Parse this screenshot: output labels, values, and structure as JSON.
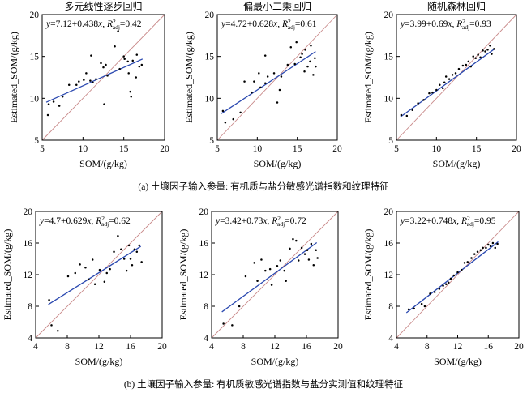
{
  "colors": {
    "fit_line": "#2b49b0",
    "ref_line": "#c98a8a",
    "point": "#000000",
    "frame": "#000000"
  },
  "captions": {
    "a": "(a) 土壤因子输入参量: 有机质与盐分敏感光谱指数和纹理特征",
    "b": "(b) 土壤因子输入参量: 有机质敏感光谱指数与盐分实测值和纹理特征"
  },
  "chart_data": [
    {
      "type": "scatter",
      "panel": "a",
      "title": "多元线性逐步回归",
      "xlabel": "SOM/(g/kg)",
      "ylabel": "Estimated_SOM/(g/kg)",
      "xlim": [
        5,
        20
      ],
      "ylim": [
        5,
        20
      ],
      "xticks": [
        "5",
        "10",
        "15",
        "20"
      ],
      "yticks": [
        "5",
        "10",
        "15",
        "20"
      ],
      "equation": {
        "lhs": "y",
        "intercept": "7.12",
        "slope": "0.438",
        "var": "x",
        "r2sym": "R",
        "r2sup": "2",
        "r2sub": "adj",
        "r2": "0.42"
      },
      "fit": {
        "intercept": 7.12,
        "slope": 0.438,
        "x_range": [
          5.5,
          17.3
        ]
      },
      "points": [
        [
          5.7,
          8.0
        ],
        [
          5.8,
          9.3
        ],
        [
          6.4,
          9.6
        ],
        [
          7.1,
          9.1
        ],
        [
          7.5,
          10.2
        ],
        [
          8.3,
          11.6
        ],
        [
          9.2,
          11.6
        ],
        [
          9.5,
          12.0
        ],
        [
          10.1,
          12.2
        ],
        [
          10.4,
          13.0
        ],
        [
          10.9,
          12.1
        ],
        [
          11.0,
          15.1
        ],
        [
          11.2,
          11.9
        ],
        [
          11.6,
          12.3
        ],
        [
          12.2,
          14.2
        ],
        [
          12.5,
          13.7
        ],
        [
          12.6,
          9.3
        ],
        [
          12.8,
          14.0
        ],
        [
          13.0,
          12.7
        ],
        [
          13.9,
          16.2
        ],
        [
          14.3,
          18.0
        ],
        [
          14.5,
          13.5
        ],
        [
          15.0,
          15.0
        ],
        [
          15.1,
          14.7
        ],
        [
          15.5,
          14.4
        ],
        [
          15.6,
          13.0
        ],
        [
          15.8,
          10.8
        ],
        [
          15.9,
          10.2
        ],
        [
          16.1,
          14.5
        ],
        [
          16.5,
          12.5
        ],
        [
          16.6,
          15.2
        ],
        [
          16.9,
          13.8
        ],
        [
          17.2,
          14.0
        ]
      ]
    },
    {
      "type": "scatter",
      "panel": "a",
      "title": "偏最小二乘回归",
      "xlabel": "SOM/(g/kg)",
      "ylabel": "Estimated_SOM/(g/kg)",
      "xlim": [
        5,
        20
      ],
      "ylim": [
        5,
        20
      ],
      "xticks": [
        "5",
        "10",
        "15",
        "20"
      ],
      "yticks": [
        "5",
        "10",
        "15",
        "20"
      ],
      "equation": {
        "lhs": "y",
        "intercept": "4.72",
        "slope": "0.628",
        "var": "x",
        "r2sym": "R",
        "r2sup": "2",
        "r2sub": "adj",
        "r2": "0.61"
      },
      "fit": {
        "intercept": 4.72,
        "slope": 0.628,
        "x_range": [
          5.5,
          17.3
        ]
      },
      "points": [
        [
          5.7,
          8.5
        ],
        [
          6.0,
          7.1
        ],
        [
          7.0,
          7.5
        ],
        [
          7.9,
          8.3
        ],
        [
          8.4,
          12.0
        ],
        [
          9.3,
          10.7
        ],
        [
          9.6,
          12.0
        ],
        [
          10.2,
          13.0
        ],
        [
          10.4,
          11.3
        ],
        [
          11.0,
          11.8
        ],
        [
          11.0,
          15.1
        ],
        [
          11.3,
          12.6
        ],
        [
          12.1,
          13.0
        ],
        [
          12.5,
          9.5
        ],
        [
          12.8,
          11.0
        ],
        [
          13.0,
          12.6
        ],
        [
          13.8,
          14.0
        ],
        [
          14.2,
          16.1
        ],
        [
          14.7,
          14.1
        ],
        [
          14.9,
          16.7
        ],
        [
          15.4,
          14.9
        ],
        [
          15.6,
          15.3
        ],
        [
          15.9,
          13.2
        ],
        [
          16.0,
          15.8
        ],
        [
          16.3,
          13.8
        ],
        [
          16.6,
          14.4
        ],
        [
          16.7,
          16.3
        ],
        [
          17.0,
          12.8
        ],
        [
          17.2,
          14.8
        ],
        [
          17.3,
          13.8
        ]
      ]
    },
    {
      "type": "scatter",
      "panel": "a",
      "title": "随机森林回归",
      "xlabel": "SOM/(g/kg)",
      "ylabel": "Estimated_SOM/(g/kg)",
      "xlim": [
        5,
        20
      ],
      "ylim": [
        5,
        20
      ],
      "xticks": [
        "5",
        "10",
        "15",
        "20"
      ],
      "yticks": [
        "5",
        "10",
        "15",
        "20"
      ],
      "equation": {
        "lhs": "y",
        "intercept": "3.99",
        "slope": "0.69",
        "var": "x",
        "r2sym": "R",
        "r2sup": "2",
        "r2sub": "adj",
        "r2": "0.93"
      },
      "fit": {
        "intercept": 3.99,
        "slope": 0.69,
        "x_range": [
          5.5,
          17.3
        ]
      },
      "points": [
        [
          5.6,
          8.0
        ],
        [
          6.3,
          7.9
        ],
        [
          7.0,
          8.6
        ],
        [
          7.7,
          9.4
        ],
        [
          8.4,
          9.8
        ],
        [
          9.1,
          10.6
        ],
        [
          9.5,
          10.7
        ],
        [
          10.0,
          11.0
        ],
        [
          10.4,
          11.6
        ],
        [
          10.8,
          11.2
        ],
        [
          11.0,
          11.9
        ],
        [
          11.2,
          12.6
        ],
        [
          11.6,
          12.3
        ],
        [
          12.0,
          12.8
        ],
        [
          12.4,
          13.0
        ],
        [
          12.8,
          13.5
        ],
        [
          13.3,
          13.9
        ],
        [
          13.7,
          14.0
        ],
        [
          14.0,
          14.4
        ],
        [
          14.3,
          13.8
        ],
        [
          14.6,
          15.0
        ],
        [
          14.9,
          14.8
        ],
        [
          15.2,
          15.2
        ],
        [
          15.5,
          14.9
        ],
        [
          15.8,
          15.7
        ],
        [
          16.1,
          15.6
        ],
        [
          16.4,
          15.8
        ],
        [
          16.7,
          16.3
        ],
        [
          16.9,
          15.3
        ],
        [
          17.2,
          15.9
        ]
      ]
    },
    {
      "type": "scatter",
      "panel": "b",
      "title": "",
      "xlabel": "SOM/(g/kg)",
      "ylabel": "Estimated_SOM/(g/kg)",
      "xlim": [
        4,
        20
      ],
      "ylim": [
        4,
        20
      ],
      "xticks": [
        "4",
        "8",
        "12",
        "16",
        "20"
      ],
      "yticks": [
        "4",
        "8",
        "12",
        "16",
        "20"
      ],
      "equation": {
        "lhs": "y",
        "intercept": "4.7",
        "slope": "0.629",
        "var": "x",
        "r2sym": "R",
        "r2sup": "2",
        "r2sub": "adj",
        "r2": "0.62"
      },
      "fit": {
        "intercept": 4.7,
        "slope": 0.629,
        "x_range": [
          5.6,
          17.3
        ]
      },
      "points": [
        [
          5.7,
          8.8
        ],
        [
          6.0,
          5.6
        ],
        [
          6.8,
          4.9
        ],
        [
          8.1,
          11.8
        ],
        [
          9.0,
          12.2
        ],
        [
          9.6,
          13.3
        ],
        [
          10.3,
          12.9
        ],
        [
          10.7,
          11.4
        ],
        [
          11.2,
          13.9
        ],
        [
          11.5,
          10.8
        ],
        [
          12.1,
          12.6
        ],
        [
          12.7,
          11.1
        ],
        [
          13.0,
          12.2
        ],
        [
          13.4,
          12.7
        ],
        [
          13.9,
          14.9
        ],
        [
          14.4,
          16.9
        ],
        [
          14.8,
          15.2
        ],
        [
          15.2,
          14.0
        ],
        [
          15.5,
          12.5
        ],
        [
          15.8,
          15.7
        ],
        [
          16.0,
          14.0
        ],
        [
          16.2,
          13.2
        ],
        [
          16.5,
          15.2
        ],
        [
          16.8,
          14.9
        ],
        [
          17.1,
          15.7
        ],
        [
          17.4,
          13.6
        ]
      ]
    },
    {
      "type": "scatter",
      "panel": "b",
      "title": "",
      "xlabel": "SOM/(g/kg)",
      "ylabel": "Estimated_SOM/(g/kg)",
      "xlim": [
        4,
        20
      ],
      "ylim": [
        4,
        20
      ],
      "xticks": [
        "4",
        "8",
        "12",
        "16",
        "20"
      ],
      "yticks": [
        "4",
        "8",
        "12",
        "16",
        "20"
      ],
      "equation": {
        "lhs": "y",
        "intercept": "3.42",
        "slope": "0.73",
        "var": "x",
        "r2sym": "R",
        "r2sup": "2",
        "r2sub": "adj",
        "r2": "0.72"
      },
      "fit": {
        "intercept": 3.42,
        "slope": 0.73,
        "x_range": [
          5.3,
          17.3
        ]
      },
      "points": [
        [
          5.5,
          5.8
        ],
        [
          6.6,
          5.6
        ],
        [
          7.5,
          8.0
        ],
        [
          8.3,
          11.8
        ],
        [
          9.4,
          13.5
        ],
        [
          9.8,
          11.2
        ],
        [
          10.3,
          13.9
        ],
        [
          10.8,
          12.5
        ],
        [
          11.4,
          12.7
        ],
        [
          11.6,
          10.7
        ],
        [
          12.3,
          13.1
        ],
        [
          12.7,
          13.8
        ],
        [
          13.2,
          12.5
        ],
        [
          13.4,
          11.2
        ],
        [
          13.9,
          15.3
        ],
        [
          14.3,
          16.5
        ],
        [
          14.7,
          16.3
        ],
        [
          15.0,
          13.8
        ],
        [
          15.4,
          15.4
        ],
        [
          15.8,
          14.6
        ],
        [
          16.1,
          15.1
        ],
        [
          16.3,
          13.9
        ],
        [
          16.6,
          15.9
        ],
        [
          16.9,
          13.2
        ],
        [
          17.2,
          15.1
        ],
        [
          17.4,
          14.1
        ]
      ]
    },
    {
      "type": "scatter",
      "panel": "b",
      "title": "",
      "xlabel": "SOM/(g/kg)",
      "ylabel": "Estimated_SOM/(g/kg)",
      "xlim": [
        4,
        20
      ],
      "ylim": [
        4,
        20
      ],
      "xticks": [
        "4",
        "8",
        "12",
        "16",
        "20"
      ],
      "yticks": [
        "4",
        "8",
        "12",
        "16",
        "20"
      ],
      "equation": {
        "lhs": "y",
        "intercept": "3.22",
        "slope": "0.748",
        "var": "x",
        "r2sym": "R",
        "r2sup": "2",
        "r2sub": "adj",
        "r2": "0.95"
      },
      "fit": {
        "intercept": 3.22,
        "slope": 0.748,
        "x_range": [
          5.3,
          17.3
        ]
      },
      "points": [
        [
          5.6,
          7.6
        ],
        [
          6.3,
          7.7
        ],
        [
          7.3,
          8.3
        ],
        [
          7.7,
          8.0
        ],
        [
          8.4,
          9.6
        ],
        [
          9.0,
          9.8
        ],
        [
          9.6,
          10.2
        ],
        [
          10.1,
          10.6
        ],
        [
          10.5,
          10.8
        ],
        [
          10.8,
          11.0
        ],
        [
          11.1,
          11.5
        ],
        [
          11.5,
          11.9
        ],
        [
          12.0,
          12.3
        ],
        [
          12.5,
          12.6
        ],
        [
          12.9,
          13.5
        ],
        [
          13.3,
          13.6
        ],
        [
          13.8,
          14.1
        ],
        [
          14.2,
          14.6
        ],
        [
          14.6,
          14.9
        ],
        [
          15.0,
          15.1
        ],
        [
          15.3,
          15.4
        ],
        [
          15.7,
          15.4
        ],
        [
          16.0,
          15.8
        ],
        [
          16.3,
          15.6
        ],
        [
          16.6,
          16.0
        ],
        [
          16.9,
          15.4
        ],
        [
          17.2,
          15.9
        ]
      ]
    }
  ]
}
